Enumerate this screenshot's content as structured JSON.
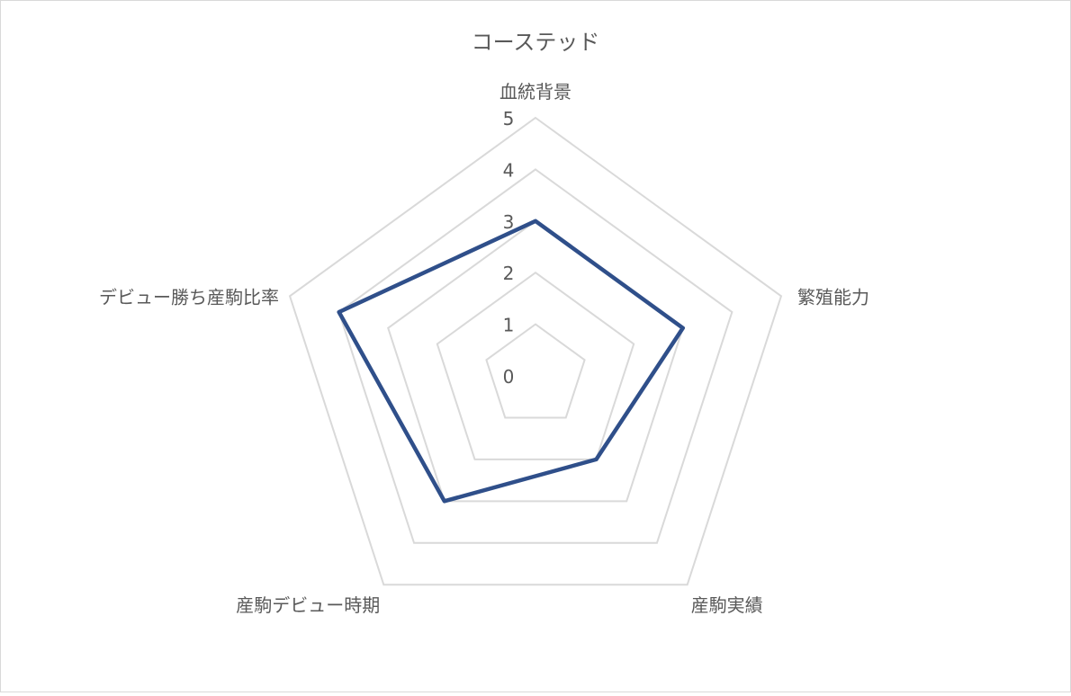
{
  "chart_data": {
    "type": "radar",
    "title": "コーステッド",
    "categories": [
      "血統背景",
      "繁殖能力",
      "産駒実績",
      "産駒デビュー時期",
      "デビュー勝ち産駒比率"
    ],
    "series": [
      {
        "values": [
          3,
          3,
          2,
          3,
          4
        ],
        "color": "#2f4f8a"
      }
    ],
    "rmin": 0,
    "rmax": 5,
    "ticks": [
      "0",
      "1",
      "2",
      "3",
      "4",
      "5"
    ],
    "grid": true,
    "grid_color": "#d9d9d9",
    "legend": "none"
  }
}
